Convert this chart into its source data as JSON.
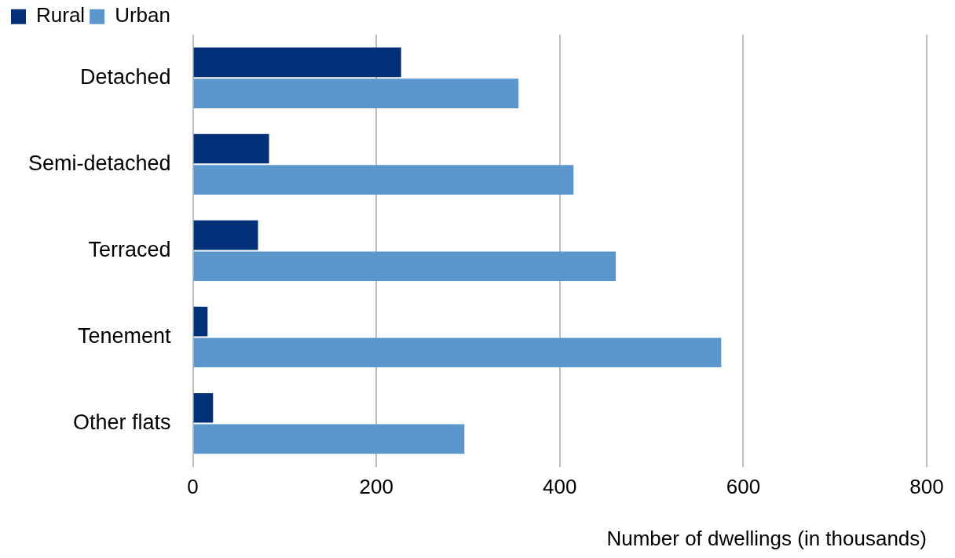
{
  "chart_data": {
    "type": "bar",
    "orientation": "horizontal",
    "categories": [
      "Detached",
      "Semi-detached",
      "Terraced",
      "Tenement",
      "Other flats"
    ],
    "series": [
      {
        "name": "Rural",
        "color": "#003078",
        "values": [
          227,
          83,
          71,
          16,
          22
        ]
      },
      {
        "name": "Urban",
        "color": "#5b97cc",
        "values": [
          355,
          415,
          461,
          576,
          296
        ]
      }
    ],
    "xlim": [
      0,
      800
    ],
    "xticks": [
      0,
      200,
      400,
      600,
      800
    ],
    "xlabel": "Number of dwellings (in thousands)",
    "legend": "top left",
    "grid": "x"
  }
}
